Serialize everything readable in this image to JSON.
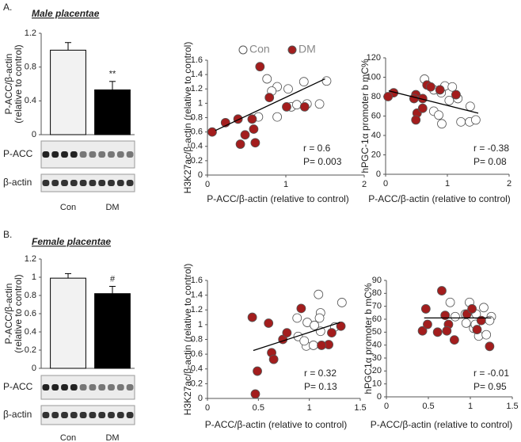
{
  "panels": [
    {
      "label": "A.",
      "title": "Male placentae"
    },
    {
      "label": "B.",
      "title": "Female placentae"
    }
  ],
  "chart_data": [
    {
      "type": "bar",
      "ylabel": [
        "P-ACC/β-actin",
        "(relative to control)"
      ],
      "categories": [
        "Con",
        "DM"
      ],
      "values": [
        1.0,
        0.53
      ],
      "errors": [
        0.09,
        0.1
      ],
      "colors": [
        "#f2f2f2",
        "#000000"
      ],
      "significance": "**",
      "ylim": [
        0,
        1.2
      ],
      "yticks": [
        0,
        0.4,
        0.8,
        1.2
      ],
      "blot_labels": [
        "P-ACC",
        "β-actin"
      ]
    },
    {
      "type": "scatter",
      "xlabel": "P-ACC/β-actin (relative to control)",
      "ylabel": "H3K27ac/β-actin (relative to control)",
      "legend": true,
      "series": [
        {
          "name": "Con",
          "color": "#ffffff",
          "x": [
            0.76,
            0.89,
            0.82,
            1.23,
            1.52,
            1.03,
            0.89,
            1.07,
            1.14,
            1.27,
            1.43,
            0.65
          ],
          "y": [
            1.34,
            1.23,
            1.17,
            1.3,
            1.31,
            1.2,
            0.81,
            0.95,
            0.98,
            0.99,
            0.99,
            0.81
          ]
        },
        {
          "name": "DM",
          "color": "#a31d1d",
          "x": [
            0.67,
            0.79,
            1.01,
            0.23,
            0.06,
            0.39,
            0.57,
            0.48,
            0.42,
            0.61,
            1.24,
            0.59
          ],
          "y": [
            1.51,
            1.08,
            0.95,
            0.73,
            0.6,
            0.78,
            0.78,
            0.56,
            0.43,
            0.45,
            0.95,
            0.64
          ]
        }
      ],
      "trendline": {
        "x": [
          0.1,
          1.5
        ],
        "y": [
          0.62,
          1.34
        ]
      },
      "annotations": [
        "r = 0.6",
        "P= 0.003"
      ],
      "xlim": [
        0,
        2
      ],
      "xticks": [
        0,
        1,
        2
      ],
      "ylim": [
        0,
        1.6
      ],
      "yticks": [
        0,
        0.2,
        0.4,
        0.6,
        0.8,
        1,
        1.2,
        1.4,
        1.6
      ]
    },
    {
      "type": "scatter",
      "xlabel": "P-ACC/β-actin (relative to control)",
      "ylabel": "hPGC-1α promoter b mC%",
      "legend": false,
      "series": [
        {
          "color": "#ffffff",
          "x": [
            0.63,
            0.78,
            0.96,
            1.08,
            0.9,
            1.17,
            0.78,
            0.86,
            1.03,
            1.22,
            1.36,
            1.46,
            1.37,
            0.91
          ],
          "y": [
            98,
            87,
            91,
            90,
            84,
            78,
            65,
            61,
            76,
            54,
            54,
            56,
            70,
            52
          ]
        },
        {
          "color": "#a31d1d",
          "x": [
            0.13,
            0.04,
            0.49,
            0.46,
            0.6,
            0.67,
            0.88,
            1.14,
            0.51,
            0.6,
            0.73,
            0.49
          ],
          "y": [
            84,
            80,
            82,
            78,
            78,
            92,
            87,
            82,
            63,
            68,
            90,
            56
          ]
        }
      ],
      "trendline": {
        "x": [
          0.05,
          1.5
        ],
        "y": [
          86,
          63
        ]
      },
      "annotations": [
        "r = -0.38",
        "P= 0.08"
      ],
      "xlim": [
        0,
        2
      ],
      "xticks": [
        0,
        1,
        2
      ],
      "ylim": [
        0,
        120
      ],
      "yticks": [
        0,
        20,
        40,
        60,
        80,
        100,
        120
      ]
    },
    {
      "type": "bar",
      "ylabel": [
        "P-ACC/β-actin",
        "(relative to control)"
      ],
      "categories": [
        "Con",
        "DM"
      ],
      "values": [
        0.99,
        0.82
      ],
      "errors": [
        0.05,
        0.08
      ],
      "colors": [
        "#f2f2f2",
        "#000000"
      ],
      "significance": "#",
      "ylim": [
        0,
        1.2
      ],
      "yticks": [
        0,
        0.2,
        0.4,
        0.6,
        0.8,
        1,
        1.2
      ],
      "blot_labels": [
        "P-ACC",
        "β-actin"
      ]
    },
    {
      "type": "scatter",
      "xlabel": "P-ACC/β-actin (relative to control)",
      "ylabel": "H3K27ac/β-actin (relative to control)",
      "legend": false,
      "series": [
        {
          "color": "#ffffff",
          "x": [
            0.98,
            0.88,
            1.11,
            1.25,
            1.05,
            1.11,
            1.09,
            0.89,
            0.97,
            1.04,
            0.95,
            1.32,
            1.1
          ],
          "y": [
            1.03,
            1.09,
            0.91,
            0.97,
            0.99,
            1.16,
            1.41,
            0.84,
            0.71,
            0.72,
            0.78,
            1.3,
            1.09
          ]
        },
        {
          "color": "#a31d1d",
          "x": [
            0.44,
            0.6,
            0.74,
            0.63,
            0.65,
            0.78,
            0.92,
            1.19,
            1.22,
            1.31,
            0.49,
            0.47,
            1.12
          ],
          "y": [
            1.1,
            1.02,
            0.8,
            0.62,
            0.53,
            0.89,
            1.22,
            0.73,
            0.89,
            0.98,
            0.37,
            0.06,
            0.72
          ]
        }
      ],
      "trendline": {
        "x": [
          0.45,
          1.3
        ],
        "y": [
          0.65,
          1.03
        ]
      },
      "annotations": [
        "r = 0.32",
        "P= 0.13"
      ],
      "xlim": [
        0,
        1.5
      ],
      "xticks": [
        0,
        0.5,
        1,
        1.5
      ],
      "ylim": [
        0,
        1.6
      ],
      "yticks": [
        0,
        0.2,
        0.4,
        0.6,
        0.8,
        1,
        1.2,
        1.4,
        1.6
      ]
    },
    {
      "type": "scatter",
      "xlabel": "P-ACC/β-actin (relative to control)",
      "ylabel": "hPGC1α promoter b mC%",
      "legend": false,
      "series": [
        {
          "color": "#ffffff",
          "x": [
            0.76,
            0.82,
            0.99,
            1.07,
            1.25,
            1.16,
            1.23,
            1.04,
            1.1,
            1.19,
            0.95,
            0.94,
            1.06
          ],
          "y": [
            73,
            62,
            73,
            64,
            62,
            69,
            59,
            53,
            47,
            48,
            57,
            64,
            56
          ]
        },
        {
          "color": "#a31d1d",
          "x": [
            0.47,
            0.43,
            0.49,
            0.61,
            0.66,
            0.7,
            0.74,
            0.81,
            0.72,
            0.96,
            1.08,
            1.13,
            1.23,
            1.02
          ],
          "y": [
            68,
            51,
            56,
            50,
            82,
            63,
            56,
            44,
            51,
            64,
            52,
            59,
            39,
            68
          ]
        }
      ],
      "trendline": {
        "x": [
          0.45,
          1.25
        ],
        "y": [
          61,
          61
        ]
      },
      "annotations": [
        "r = -0.01",
        "P= 0.95"
      ],
      "xlim": [
        0,
        1.5
      ],
      "xticks": [
        0,
        0.5,
        1,
        1.5
      ],
      "ylim": [
        0,
        90
      ],
      "yticks": [
        0,
        10,
        20,
        30,
        40,
        50,
        60,
        70,
        80,
        90
      ]
    }
  ]
}
